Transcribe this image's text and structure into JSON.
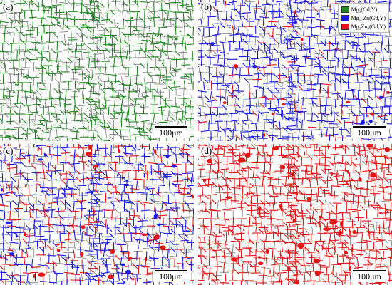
{
  "colors": {
    "green": "#1f8a1f",
    "blue": "#1a1ae6",
    "red": "#e61414",
    "boundary": "#555555"
  },
  "panels": [
    {
      "label": "(a)",
      "scale_text": "100μm",
      "phase_mix": "green"
    },
    {
      "label": "(b)",
      "scale_text": "100μm",
      "phase_mix": "blue-red-light"
    },
    {
      "label": "(c)",
      "scale_text": "100μm",
      "phase_mix": "blue-red-heavy"
    },
    {
      "label": "(d)",
      "scale_text": "100μm",
      "phase_mix": "red"
    }
  ],
  "legend": {
    "items": [
      {
        "label": "Mg₃(Gd,Y)",
        "color": "#1f8a1f"
      },
      {
        "label": "Mg₁₂Zn(Gd,Y)",
        "color": "#1a1ae6"
      },
      {
        "label": "Mg₃Zn₆(Gd,Y)",
        "color": "#e61414"
      }
    ]
  }
}
